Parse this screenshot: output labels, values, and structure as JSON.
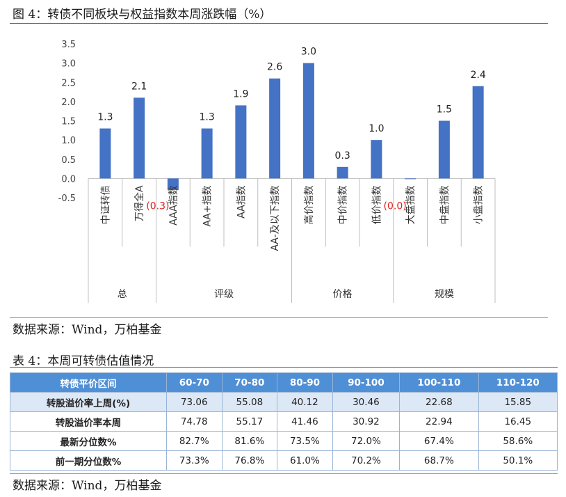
{
  "figure": {
    "caption": "图 4：转债不同板块与权益指数本周涨跌幅（%）",
    "source": "数据来源：Wind，万柏基金"
  },
  "chart_data": {
    "type": "bar",
    "title": "",
    "ylim": [
      -0.5,
      3.5
    ],
    "yticks": [
      "3.5",
      "3.0",
      "2.5",
      "2.0",
      "1.5",
      "1.0",
      "0.5",
      "0.0",
      "-0.5"
    ],
    "ytick_values": [
      3.5,
      3.0,
      2.5,
      2.0,
      1.5,
      1.0,
      0.5,
      0.0,
      -0.5
    ],
    "categories": [
      "中证转债",
      "万得全A",
      "AAA指数",
      "AA+指数",
      "AA指数",
      "AA-及以下指数",
      "高价指数",
      "中价指数",
      "低价指数",
      "大盘指数",
      "中盘指数",
      "小盘指数"
    ],
    "values": [
      1.3,
      2.1,
      -0.3,
      1.3,
      1.9,
      2.6,
      3.0,
      0.3,
      1.0,
      0.0,
      1.5,
      2.4
    ],
    "data_labels": [
      "1.3",
      "2.1",
      "(0.3)",
      "1.3",
      "1.9",
      "2.6",
      "3.0",
      "0.3",
      "1.0",
      "(0.0)",
      "1.5",
      "2.4"
    ],
    "groups": [
      {
        "label": "总",
        "start": 0,
        "end": 1
      },
      {
        "label": "评级",
        "start": 2,
        "end": 5
      },
      {
        "label": "价格",
        "start": 6,
        "end": 8
      },
      {
        "label": "规模",
        "start": 9,
        "end": 11
      }
    ],
    "bar_color": "#4472c4",
    "negative_label_color": "#e02020",
    "grid": false
  },
  "table": {
    "caption": "表 4：本周可转债估值情况",
    "source": "数据来源：Wind，万柏基金",
    "header": [
      "转债平价区间",
      "60-70",
      "70-80",
      "80-90",
      "90-100",
      "100-110",
      "110-120"
    ],
    "rows": [
      {
        "label": "转股溢价率上周(%)",
        "cells": [
          "73.06",
          "55.08",
          "40.12",
          "30.46",
          "22.68",
          "15.85"
        ]
      },
      {
        "label": "转股溢价率本周",
        "cells": [
          "74.78",
          "55.17",
          "41.46",
          "30.92",
          "22.94",
          "16.45"
        ]
      },
      {
        "label": "最新分位数%",
        "cells": [
          "82.7%",
          "81.6%",
          "73.5%",
          "72.0%",
          "67.4%",
          "58.6%"
        ]
      },
      {
        "label": "前一期分位数%",
        "cells": [
          "73.3%",
          "76.8%",
          "61.0%",
          "70.2%",
          "68.7%",
          "50.1%"
        ]
      }
    ],
    "header_color": "#4f8fd6",
    "shade_color": "#dde8f6"
  }
}
